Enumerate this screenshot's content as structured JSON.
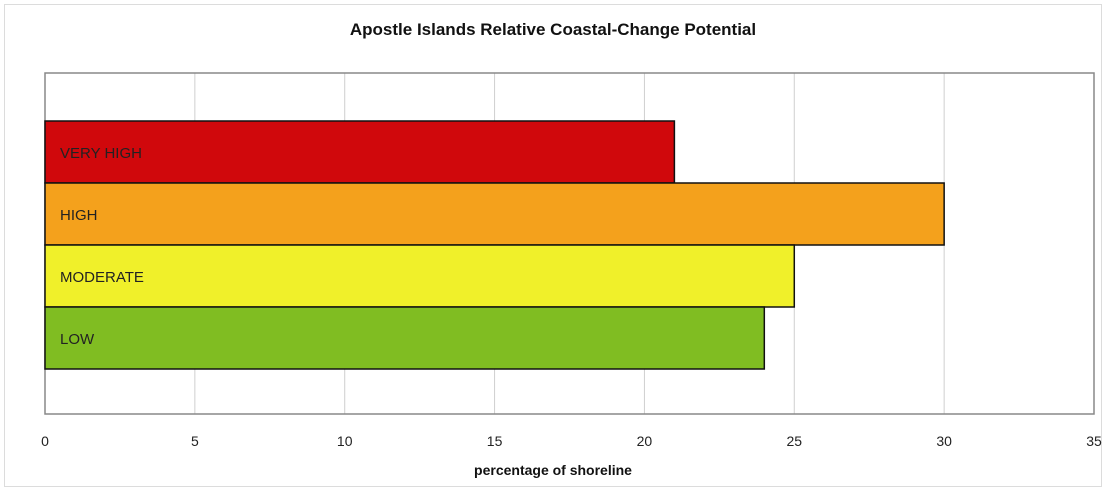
{
  "chart_data": {
    "type": "bar",
    "orientation": "horizontal",
    "title": "Apostle Islands Relative Coastal-Change Potential",
    "xlabel": "percentage of shoreline",
    "ylabel": "",
    "xlim": [
      0,
      35
    ],
    "xticks": [
      0,
      5,
      10,
      15,
      20,
      25,
      30,
      35
    ],
    "grid": true,
    "categories": [
      "VERY HIGH",
      "HIGH",
      "MODERATE",
      "LOW"
    ],
    "values": [
      21,
      30,
      25,
      24
    ],
    "colors": [
      "#d0080c",
      "#f4a11c",
      "#f0f02a",
      "#80bd22"
    ]
  }
}
